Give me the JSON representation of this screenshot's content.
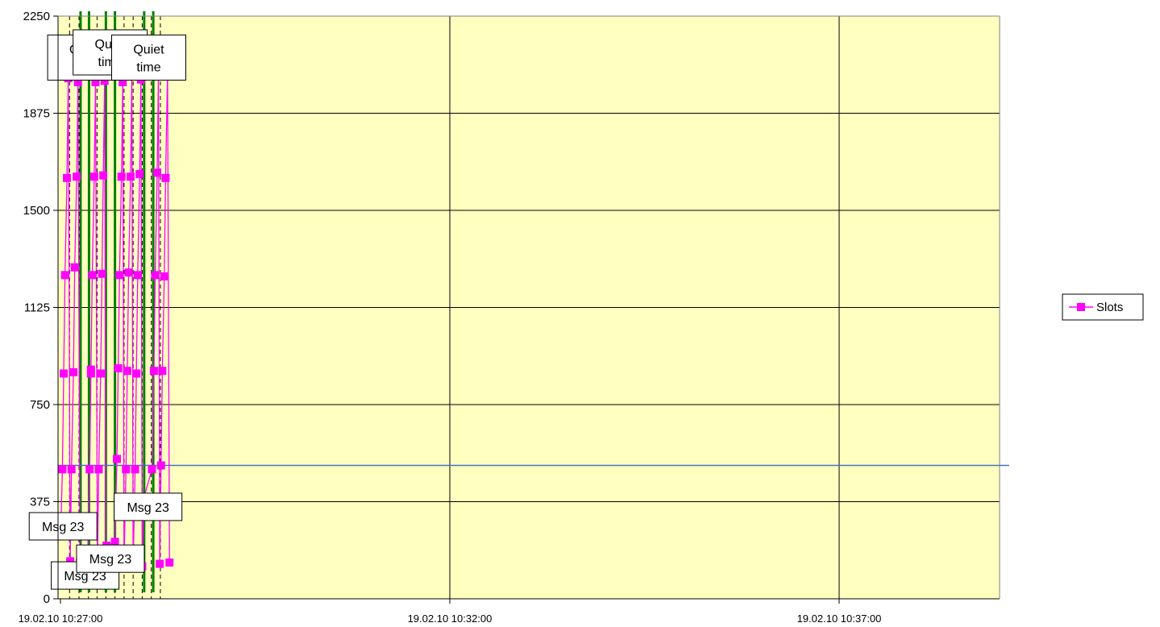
{
  "chart_data": {
    "type": "line",
    "title": "",
    "xlabel": "",
    "ylabel": "",
    "ylim": [
      0,
      2250
    ],
    "y_ticks": [
      "0",
      "375",
      "750",
      "1125",
      "1500",
      "1875",
      "2250"
    ],
    "x_tick_labels": [
      "19.02.10 10:27:00",
      "19.02.10 10:32:00",
      "19.02.10 10:37:00"
    ],
    "x_tick_times": [
      "10:27:00",
      "10:32:00",
      "10:37:00"
    ],
    "xlim": [
      "10:27:00",
      "10:39:00"
    ],
    "grid": "horizontal",
    "plot_background": "#FFFFC0",
    "legend": {
      "position": "right",
      "entries": [
        "Slots"
      ]
    },
    "series": [
      {
        "name": "Slots",
        "color": "#FF00FF",
        "marker": "square",
        "points": [
          [
            "10:27:00.5",
            310
          ],
          [
            "10:27:01.5",
            500
          ],
          [
            "10:27:02.5",
            870
          ],
          [
            "10:27:03.5",
            1250
          ],
          [
            "10:27:05.0",
            1625
          ],
          [
            "10:27:06.0",
            2010
          ],
          [
            "10:27:07.5",
            145
          ],
          [
            "10:27:08.5",
            500
          ],
          [
            "10:27:10.0",
            875
          ],
          [
            "10:27:11.0",
            1280
          ],
          [
            "10:27:12.5",
            1630
          ],
          [
            "10:27:13.5",
            1995
          ],
          [
            "10:27:15.0",
            140
          ],
          [
            "10:27:21.0",
            170
          ],
          [
            "10:27:22.5",
            500
          ],
          [
            "10:27:23.5",
            870
          ],
          [
            "10:27:23.5",
            885
          ],
          [
            "10:27:24.5",
            1250
          ],
          [
            "10:27:26.0",
            1630
          ],
          [
            "10:27:27.0",
            1995
          ],
          [
            "10:27:28.5",
            130
          ],
          [
            "10:27:29.5",
            500
          ],
          [
            "10:27:31.0",
            870
          ],
          [
            "10:27:32.0",
            1255
          ],
          [
            "10:27:33.0",
            1635
          ],
          [
            "10:27:34.0",
            2000
          ],
          [
            "10:27:35.0",
            135
          ],
          [
            "10:27:35.5",
            205
          ],
          [
            "10:27:42.0",
            220
          ],
          [
            "10:27:43.5",
            540
          ],
          [
            "10:27:44.5",
            890
          ],
          [
            "10:27:45.5",
            1250
          ],
          [
            "10:27:47.0",
            1630
          ],
          [
            "10:27:48.0",
            1995
          ],
          [
            "10:27:49.0",
            135
          ],
          [
            "10:27:50.5",
            500
          ],
          [
            "10:27:51.5",
            880
          ],
          [
            "10:27:52.5",
            1260
          ],
          [
            "10:27:54.0",
            1630
          ],
          [
            "10:27:55.0",
            2025
          ],
          [
            "10:27:56.0",
            125
          ],
          [
            "10:27:57.5",
            500
          ],
          [
            "10:27:58.5",
            870
          ],
          [
            "10:27:59.5",
            1250
          ],
          [
            "10:28:01.0",
            1640
          ],
          [
            "10:28:02.0",
            2005
          ],
          [
            "10:28:03.0",
            125
          ],
          [
            "10:28:04.0",
            385
          ],
          [
            "10:28:10.5",
            500
          ],
          [
            "10:28:12.0",
            880
          ],
          [
            "10:28:13.0",
            1250
          ],
          [
            "10:28:14.5",
            1645
          ],
          [
            "10:28:15.5",
            2025
          ],
          [
            "10:28:16.5",
            135
          ],
          [
            "10:28:17.5",
            515
          ],
          [
            "10:28:18.5",
            880
          ],
          [
            "10:28:20.0",
            1245
          ],
          [
            "10:28:21.0",
            1625
          ],
          [
            "10:28:22.5",
            2040
          ],
          [
            "10:28:24.0",
            140
          ]
        ]
      }
    ],
    "threshold_line": {
      "value": 515,
      "color": "#4472C4"
    },
    "dashed_dividers": [
      "10:27:07.0",
      "10:27:14.3",
      "10:27:21.6",
      "10:27:28.2",
      "10:27:35.0",
      "10:27:42.0",
      "10:27:49.0",
      "10:27:56.0",
      "10:28:03.0",
      "10:28:10.0",
      "10:28:17.0"
    ],
    "quiet_time_lines": [
      [
        "10:27:15.5",
        "10:27:22.0"
      ],
      [
        "10:27:35.0",
        "10:27:42.0"
      ],
      [
        "10:28:04.5",
        "10:28:11.5"
      ]
    ],
    "quiet_line_color": "#008000",
    "annotations": [
      {
        "text": [
          "Quiet",
          "time"
        ],
        "time": "10:27:18.7",
        "value": 2090,
        "anchor": "box"
      },
      {
        "text": [
          "Quiet",
          "time"
        ],
        "time": "10:27:38.3",
        "value": 2110,
        "anchor": "box"
      },
      {
        "text": [
          "Quiet",
          "time"
        ],
        "time": "10:28:08.0",
        "value": 2090,
        "anchor": "box"
      },
      {
        "text": [
          "Msg 23"
        ],
        "time": "10:27:02.0",
        "value": 280,
        "anchor": "box"
      },
      {
        "text": [
          "Msg 23"
        ],
        "time": "10:27:19.0",
        "value": 90,
        "anchor": "box"
      },
      {
        "text": [
          "Msg 23"
        ],
        "time": "10:27:38.5",
        "value": 155,
        "anchor": "box"
      },
      {
        "text": [
          "Msg 23"
        ],
        "time": "10:28:07.5",
        "value": 355,
        "anchor": "box"
      }
    ]
  }
}
